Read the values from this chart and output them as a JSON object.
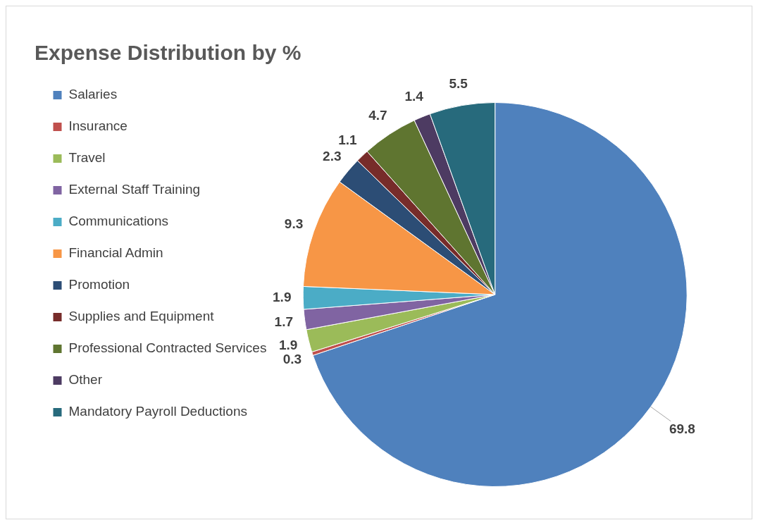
{
  "chart_data": {
    "type": "pie",
    "title": "Expense Distribution by %",
    "categories": [
      "Salaries",
      "Insurance",
      "Travel",
      "External Staff Training",
      "Communications",
      "Financial Admin",
      "Promotion",
      "Supplies and Equipment",
      "Professional Contracted Services",
      "Other",
      "Mandatory Payroll Deductions"
    ],
    "values": [
      69.8,
      0.3,
      1.9,
      1.7,
      1.9,
      9.3,
      2.3,
      1.1,
      4.7,
      1.4,
      5.5
    ],
    "colors": [
      "#4f81bd",
      "#c0504d",
      "#9bbb59",
      "#8064a2",
      "#4bacc6",
      "#f79646",
      "#2c4d75",
      "#772c2a",
      "#5f7530",
      "#4d3b62",
      "#276a7c"
    ],
    "legend": "left",
    "data_labels": true
  }
}
